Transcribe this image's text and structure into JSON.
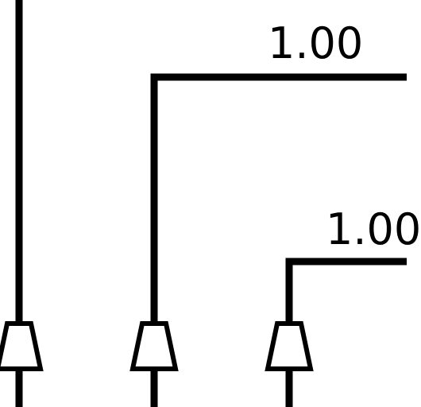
{
  "diagram": {
    "colors": {
      "line": "#000000",
      "background": "#ffffff"
    },
    "edge_labels": [
      {
        "text": "1.00"
      },
      {
        "text": "1.00"
      }
    ]
  }
}
